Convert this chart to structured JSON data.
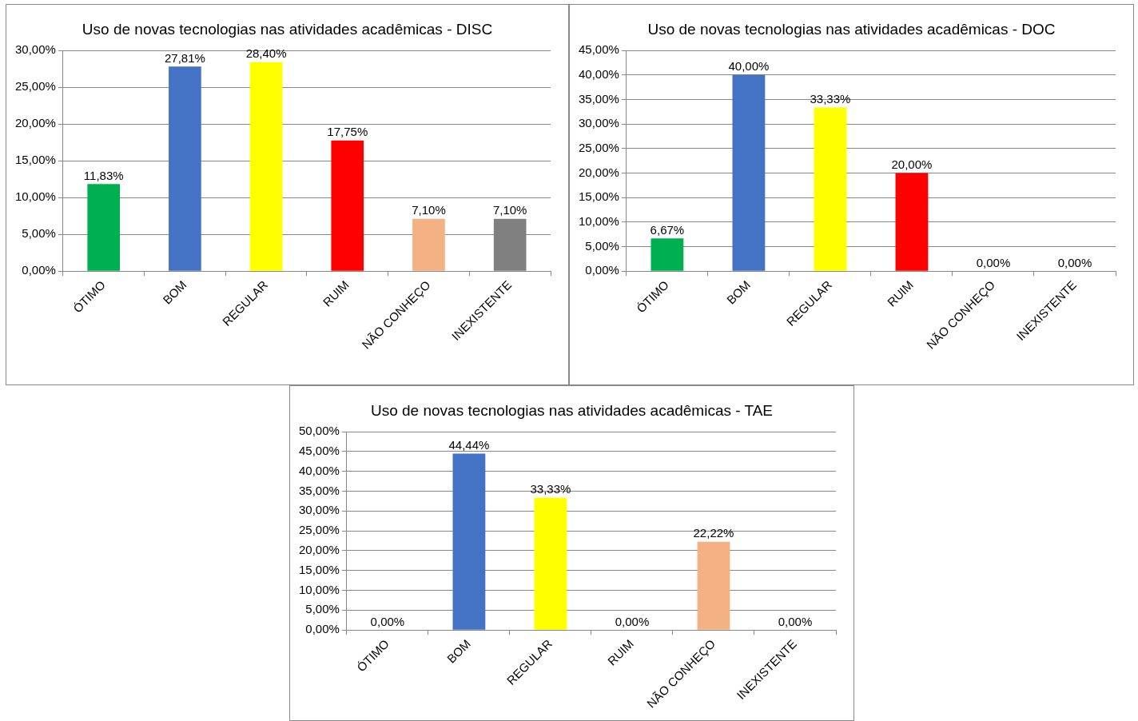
{
  "chart_data": [
    {
      "type": "bar",
      "title": "Uso de novas tecnologias nas atividades acadêmicas - DISC",
      "categories": [
        "ÓTIMO",
        "BOM",
        "REGULAR",
        "RUIM",
        "NÃO CONHEÇO",
        "INEXISTENTE"
      ],
      "values": [
        11.83,
        27.81,
        28.4,
        17.75,
        7.1,
        7.1
      ],
      "colors": [
        "#00b050",
        "#4472c4",
        "#ffff00",
        "#ff0000",
        "#f4b183",
        "#808080"
      ],
      "value_labels": [
        "11,83%",
        "27,81%",
        "28,40%",
        "17,75%",
        "7,10%",
        "7,10%"
      ],
      "ylim": [
        0,
        30
      ],
      "yticks": [
        {
          "value": 0,
          "label": "0,00%"
        },
        {
          "value": 5,
          "label": "5,00%"
        },
        {
          "value": 10,
          "label": "10,00%"
        },
        {
          "value": 15,
          "label": "15,00%"
        },
        {
          "value": 20,
          "label": "20,00%"
        },
        {
          "value": 25,
          "label": "25,00%"
        },
        {
          "value": 30,
          "label": "30,00%"
        }
      ],
      "grid": "y"
    },
    {
      "type": "bar",
      "title": "Uso de novas tecnologias nas atividades acadêmicas - DOC",
      "categories": [
        "ÓTIMO",
        "BOM",
        "REGULAR",
        "RUIM",
        "NÃO CONHEÇO",
        "INEXISTENTE"
      ],
      "values": [
        6.67,
        40,
        33.33,
        20,
        0,
        0
      ],
      "colors": [
        "#00b050",
        "#4472c4",
        "#ffff00",
        "#ff0000",
        "#f4b183",
        "#808080"
      ],
      "value_labels": [
        "6,67%",
        "40,00%",
        "33,33%",
        "20,00%",
        "0,00%",
        "0,00%"
      ],
      "ylim": [
        0,
        45
      ],
      "yticks": [
        {
          "value": 0,
          "label": "0,00%"
        },
        {
          "value": 5,
          "label": "5,00%"
        },
        {
          "value": 10,
          "label": "10,00%"
        },
        {
          "value": 15,
          "label": "15,00%"
        },
        {
          "value": 20,
          "label": "20,00%"
        },
        {
          "value": 25,
          "label": "25,00%"
        },
        {
          "value": 30,
          "label": "30,00%"
        },
        {
          "value": 35,
          "label": "35,00%"
        },
        {
          "value": 40,
          "label": "40,00%"
        },
        {
          "value": 45,
          "label": "45,00%"
        }
      ],
      "grid": "y"
    },
    {
      "type": "bar",
      "title": "Uso de novas tecnologias nas atividades acadêmicas - TAE",
      "categories": [
        "ÓTIMO",
        "BOM",
        "REGULAR",
        "RUIM",
        "NÃO CONHEÇO",
        "INEXISTENTE"
      ],
      "values": [
        0,
        44.44,
        33.33,
        0,
        22.22,
        0
      ],
      "colors": [
        "#00b050",
        "#4472c4",
        "#ffff00",
        "#ff0000",
        "#f4b183",
        "#808080"
      ],
      "value_labels": [
        "0,00%",
        "44,44%",
        "33,33%",
        "0,00%",
        "22,22%",
        "0,00%"
      ],
      "ylim": [
        0,
        50
      ],
      "yticks": [
        {
          "value": 0,
          "label": "0,00%"
        },
        {
          "value": 5,
          "label": "5,00%"
        },
        {
          "value": 10,
          "label": "10,00%"
        },
        {
          "value": 15,
          "label": "15,00%"
        },
        {
          "value": 20,
          "label": "20,00%"
        },
        {
          "value": 25,
          "label": "25,00%"
        },
        {
          "value": 30,
          "label": "30,00%"
        },
        {
          "value": 35,
          "label": "35,00%"
        },
        {
          "value": 40,
          "label": "40,00%"
        },
        {
          "value": 45,
          "label": "45,00%"
        },
        {
          "value": 50,
          "label": "50,00%"
        }
      ],
      "grid": "y"
    }
  ]
}
